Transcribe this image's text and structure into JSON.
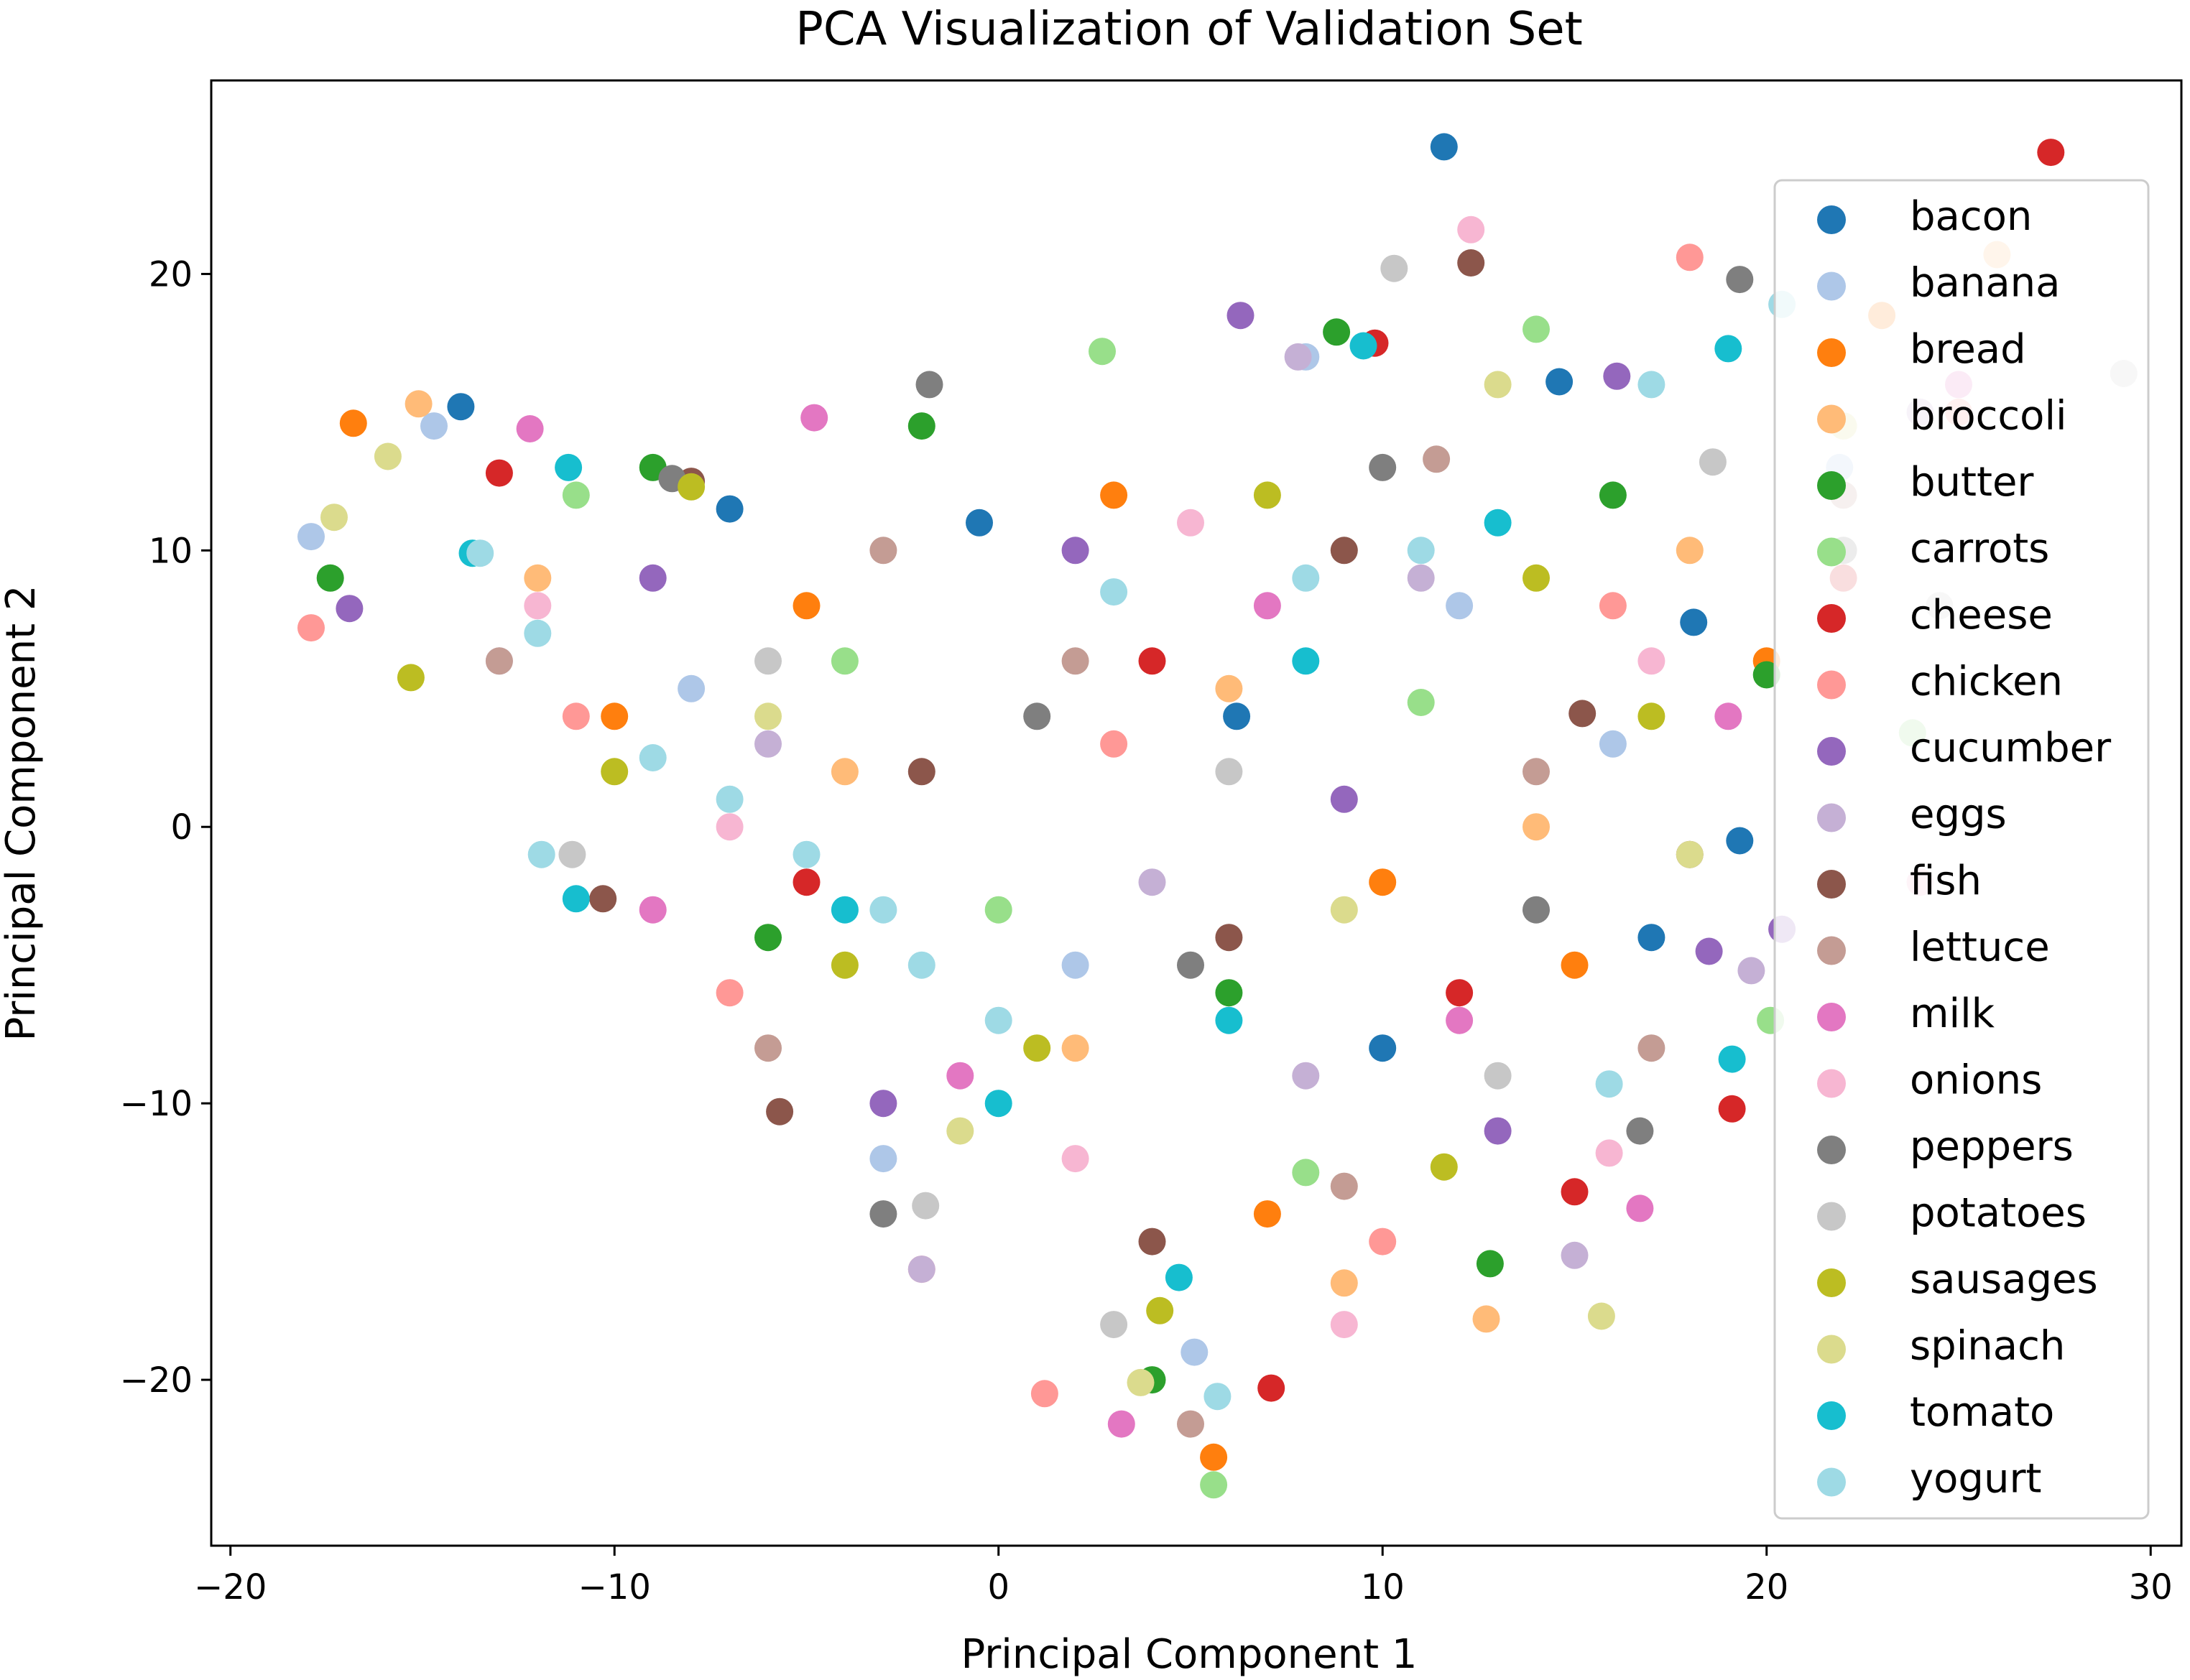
{
  "chart_data": {
    "type": "scatter",
    "title": "PCA Visualization of Validation Set",
    "xlabel": "Principal Component 1",
    "ylabel": "Principal Component 2",
    "xlim": [
      -20.5,
      30.8
    ],
    "ylim": [
      -26.0,
      27.0
    ],
    "xticks": [
      -20,
      -10,
      0,
      10,
      20,
      30
    ],
    "xtick_labels": [
      "−20",
      "−10",
      "0",
      "10",
      "20",
      "30"
    ],
    "yticks": [
      -20,
      -10,
      0,
      10,
      20
    ],
    "ytick_labels": [
      "−20",
      "−10",
      "0",
      "10",
      "20"
    ],
    "grid": false,
    "legend_position": "top-right",
    "colormap": "tab20",
    "series": [
      {
        "name": "bacon",
        "color": "#1f77b4",
        "points": [
          [
            11.6,
            24.6
          ],
          [
            -14.0,
            15.2
          ],
          [
            -7.0,
            11.5
          ],
          [
            14.6,
            16.1
          ],
          [
            18.1,
            7.4
          ],
          [
            19.3,
            -0.5
          ],
          [
            17.0,
            -4.0
          ],
          [
            -0.5,
            11.0
          ],
          [
            6.2,
            4.0
          ],
          [
            10.0,
            -8.0
          ]
        ]
      },
      {
        "name": "banana",
        "color": "#aec7e8",
        "points": [
          [
            -17.9,
            10.5
          ],
          [
            -14.7,
            14.5
          ],
          [
            21.9,
            13.0
          ],
          [
            5.1,
            -19.0
          ],
          [
            8.0,
            17.0
          ],
          [
            -8.0,
            5.0
          ],
          [
            2.0,
            -5.0
          ],
          [
            12.0,
            8.0
          ],
          [
            -3.0,
            -12.0
          ],
          [
            16.0,
            3.0
          ]
        ]
      },
      {
        "name": "bread",
        "color": "#ff7f0e",
        "points": [
          [
            -16.8,
            14.6
          ],
          [
            5.6,
            -22.8
          ],
          [
            23.0,
            18.5
          ],
          [
            -5.0,
            8.0
          ],
          [
            10.0,
            -2.0
          ],
          [
            15.0,
            -5.0
          ],
          [
            -10.0,
            4.0
          ],
          [
            3.0,
            12.0
          ],
          [
            7.0,
            -14.0
          ],
          [
            20.0,
            6.0
          ]
        ]
      },
      {
        "name": "broccoli",
        "color": "#ffbb78",
        "points": [
          [
            -15.1,
            15.3
          ],
          [
            12.7,
            -17.8
          ],
          [
            26.0,
            20.7
          ],
          [
            9.0,
            -16.5
          ],
          [
            -4.0,
            2.0
          ],
          [
            6.0,
            5.0
          ],
          [
            18.0,
            10.0
          ],
          [
            -12.0,
            9.0
          ],
          [
            2.0,
            -8.0
          ],
          [
            14.0,
            0.0
          ]
        ]
      },
      {
        "name": "butter",
        "color": "#2ca02c",
        "points": [
          [
            -17.4,
            9.0
          ],
          [
            12.8,
            -15.8
          ],
          [
            8.8,
            17.9
          ],
          [
            -9.0,
            13.0
          ],
          [
            4.0,
            -20.0
          ],
          [
            20.0,
            5.5
          ],
          [
            -2.0,
            14.5
          ],
          [
            6.0,
            -6.0
          ],
          [
            16.0,
            12.0
          ],
          [
            -6.0,
            -4.0
          ]
        ]
      },
      {
        "name": "carrots",
        "color": "#98df8a",
        "points": [
          [
            5.6,
            -23.8
          ],
          [
            20.1,
            -7.0
          ],
          [
            2.7,
            17.2
          ],
          [
            -11.0,
            12.0
          ],
          [
            23.8,
            3.4
          ],
          [
            8.0,
            -12.5
          ],
          [
            -4.0,
            6.0
          ],
          [
            14.0,
            18.0
          ],
          [
            0.0,
            -3.0
          ],
          [
            11.0,
            4.5
          ]
        ]
      },
      {
        "name": "cheese",
        "color": "#d62728",
        "points": [
          [
            27.4,
            24.4
          ],
          [
            19.1,
            -10.2
          ],
          [
            7.1,
            -20.3
          ],
          [
            15.0,
            -13.2
          ],
          [
            -13.0,
            12.8
          ],
          [
            9.8,
            17.5
          ],
          [
            22.0,
            9.0
          ],
          [
            -5.0,
            -2.0
          ],
          [
            4.0,
            6.0
          ],
          [
            12.0,
            -6.0
          ]
        ]
      },
      {
        "name": "chicken",
        "color": "#ff9896",
        "points": [
          [
            -17.9,
            7.2
          ],
          [
            18.0,
            20.6
          ],
          [
            1.2,
            -20.5
          ],
          [
            -7.0,
            -6.0
          ],
          [
            10.0,
            -15.0
          ],
          [
            25.0,
            15.0
          ],
          [
            -11.0,
            4.0
          ],
          [
            3.0,
            3.0
          ],
          [
            16.0,
            8.0
          ],
          [
            -2.0,
            -16.0
          ]
        ]
      },
      {
        "name": "cucumber",
        "color": "#9467bd",
        "points": [
          [
            -16.9,
            7.9
          ],
          [
            6.3,
            18.5
          ],
          [
            20.4,
            -3.7
          ],
          [
            16.1,
            16.3
          ],
          [
            -3.0,
            -10.0
          ],
          [
            9.0,
            1.0
          ],
          [
            -9.0,
            9.0
          ],
          [
            13.0,
            -11.0
          ],
          [
            2.0,
            10.0
          ],
          [
            18.5,
            -4.5
          ]
        ]
      },
      {
        "name": "eggs",
        "color": "#c5b0d5",
        "points": [
          [
            15.0,
            -15.5
          ],
          [
            19.6,
            -5.2
          ],
          [
            7.8,
            17.0
          ],
          [
            -2.0,
            -16.0
          ],
          [
            24.0,
            15.0
          ],
          [
            -6.0,
            3.0
          ],
          [
            11.0,
            9.0
          ],
          [
            4.0,
            -2.0
          ],
          [
            -13.0,
            6.0
          ],
          [
            8.0,
            -9.0
          ]
        ]
      },
      {
        "name": "fish",
        "color": "#8c564b",
        "points": [
          [
            -5.7,
            -10.3
          ],
          [
            -10.3,
            -2.6
          ],
          [
            12.3,
            20.4
          ],
          [
            15.2,
            4.1
          ],
          [
            -8.0,
            12.5
          ],
          [
            4.0,
            -15.0
          ],
          [
            9.0,
            10.0
          ],
          [
            -2.0,
            2.0
          ],
          [
            18.0,
            -1.0
          ],
          [
            6.0,
            -4.0
          ]
        ]
      },
      {
        "name": "lettuce",
        "color": "#c49c94",
        "points": [
          [
            5.0,
            -21.6
          ],
          [
            11.4,
            13.3
          ],
          [
            -13.0,
            6.0
          ],
          [
            17.0,
            -8.0
          ],
          [
            -6.0,
            -8.0
          ],
          [
            2.0,
            6.0
          ],
          [
            9.0,
            -13.0
          ],
          [
            22.0,
            12.0
          ],
          [
            -3.0,
            10.0
          ],
          [
            14.0,
            2.0
          ]
        ]
      },
      {
        "name": "milk",
        "color": "#e377c2",
        "points": [
          [
            -12.2,
            14.4
          ],
          [
            -4.8,
            14.8
          ],
          [
            16.7,
            -13.8
          ],
          [
            3.2,
            -21.6
          ],
          [
            25.0,
            16.0
          ],
          [
            -9.0,
            -3.0
          ],
          [
            7.0,
            8.0
          ],
          [
            12.0,
            -7.0
          ],
          [
            -1.0,
            -9.0
          ],
          [
            19.0,
            4.0
          ]
        ]
      },
      {
        "name": "onions",
        "color": "#f7b6d2",
        "points": [
          [
            12.3,
            21.6
          ],
          [
            21.7,
            22.0
          ],
          [
            15.9,
            -11.8
          ],
          [
            -7.0,
            0.0
          ],
          [
            5.0,
            11.0
          ],
          [
            9.0,
            -18.0
          ],
          [
            -12.0,
            8.0
          ],
          [
            2.0,
            -12.0
          ],
          [
            17.0,
            6.0
          ],
          [
            24.0,
            -2.0
          ]
        ]
      },
      {
        "name": "peppers",
        "color": "#7f7f7f",
        "points": [
          [
            19.3,
            19.8
          ],
          [
            -1.8,
            16.0
          ],
          [
            16.7,
            -11.0
          ],
          [
            -8.5,
            12.6
          ],
          [
            5.0,
            -5.0
          ],
          [
            10.0,
            13.0
          ],
          [
            -3.0,
            -14.0
          ],
          [
            14.0,
            -3.0
          ],
          [
            1.0,
            4.0
          ],
          [
            22.0,
            10.0
          ]
        ]
      },
      {
        "name": "potatoes",
        "color": "#c7c7c7",
        "points": [
          [
            29.3,
            16.4
          ],
          [
            10.3,
            20.2
          ],
          [
            -1.9,
            -13.7
          ],
          [
            -11.1,
            -1.0
          ],
          [
            18.6,
            13.2
          ],
          [
            6.0,
            2.0
          ],
          [
            -6.0,
            6.0
          ],
          [
            13.0,
            -9.0
          ],
          [
            3.0,
            -18.0
          ],
          [
            24.5,
            8.0
          ]
        ]
      },
      {
        "name": "sausages",
        "color": "#bcbd22",
        "points": [
          [
            -15.3,
            5.4
          ],
          [
            -8.0,
            12.3
          ],
          [
            4.2,
            -17.5
          ],
          [
            11.6,
            -12.3
          ],
          [
            17.0,
            4.0
          ],
          [
            -4.0,
            -5.0
          ],
          [
            7.0,
            12.0
          ],
          [
            -10.0,
            2.0
          ],
          [
            1.0,
            -8.0
          ],
          [
            14.0,
            9.0
          ]
        ]
      },
      {
        "name": "spinach",
        "color": "#dbdb8d",
        "points": [
          [
            -17.3,
            11.2
          ],
          [
            -15.9,
            13.4
          ],
          [
            15.7,
            -17.7
          ],
          [
            3.7,
            -20.1
          ],
          [
            22.0,
            14.5
          ],
          [
            -6.0,
            4.0
          ],
          [
            9.0,
            -3.0
          ],
          [
            13.0,
            16.0
          ],
          [
            -1.0,
            -11.0
          ],
          [
            18.0,
            -1.0
          ]
        ]
      },
      {
        "name": "tomato",
        "color": "#17becf",
        "points": [
          [
            -11.2,
            13.0
          ],
          [
            -13.7,
            9.9
          ],
          [
            -11.0,
            -2.6
          ],
          [
            9.5,
            17.4
          ],
          [
            19.0,
            17.3
          ],
          [
            19.1,
            -8.4
          ],
          [
            4.7,
            -16.3
          ],
          [
            8.0,
            6.0
          ],
          [
            -4.0,
            -3.0
          ],
          [
            0.0,
            -10.0
          ],
          [
            13.0,
            11.0
          ],
          [
            6.0,
            -7.0
          ]
        ]
      },
      {
        "name": "yogurt",
        "color": "#9edae5",
        "points": [
          [
            -11.9,
            -1.0
          ],
          [
            -13.5,
            9.9
          ],
          [
            15.9,
            -9.3
          ],
          [
            5.7,
            -20.6
          ],
          [
            20.4,
            18.9
          ],
          [
            -9.0,
            2.5
          ],
          [
            -7.0,
            1.0
          ],
          [
            -5.0,
            -1.0
          ],
          [
            -3.0,
            -3.0
          ],
          [
            -2.0,
            -5.0
          ],
          [
            0.0,
            -7.0
          ],
          [
            -12.0,
            7.0
          ],
          [
            3.0,
            8.5
          ],
          [
            8.0,
            9.0
          ],
          [
            11.0,
            10.0
          ],
          [
            17.0,
            16.0
          ]
        ]
      }
    ]
  }
}
